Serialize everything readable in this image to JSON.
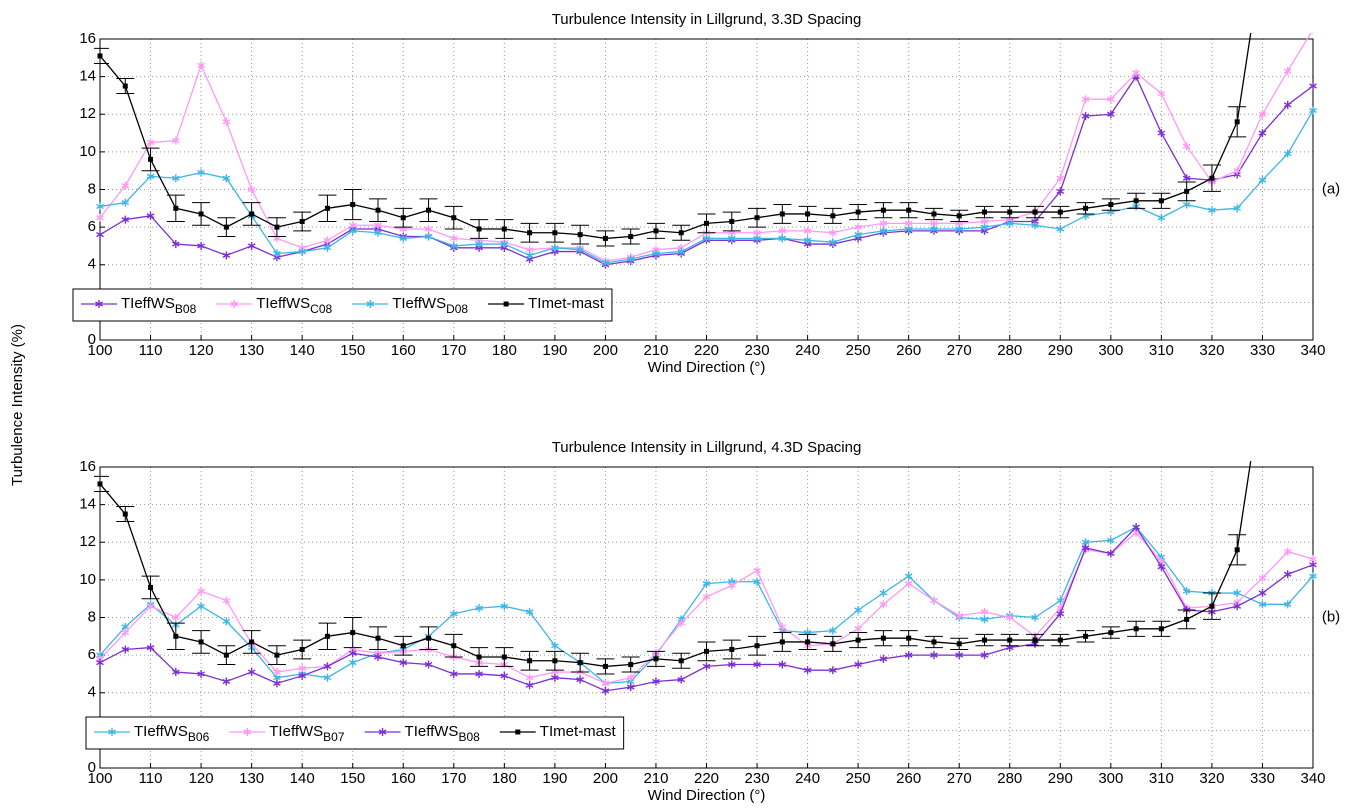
{
  "chart_data": [
    {
      "type": "line",
      "title": "Turbulence Intensity in Lillgrund, 3.3D Spacing",
      "xlabel": "Wind Direction (°)",
      "ylabel": "Turbulence Intensity (%)",
      "annotation": "(a)",
      "x": [
        100,
        105,
        110,
        115,
        120,
        125,
        130,
        135,
        140,
        145,
        150,
        155,
        160,
        165,
        170,
        175,
        180,
        185,
        190,
        195,
        200,
        205,
        210,
        215,
        220,
        225,
        230,
        235,
        240,
        245,
        250,
        255,
        260,
        265,
        270,
        275,
        280,
        285,
        290,
        295,
        300,
        305,
        310,
        315,
        320,
        325,
        330,
        335,
        340
      ],
      "xlim": [
        100,
        340
      ],
      "xticks": [
        100,
        110,
        120,
        130,
        140,
        150,
        160,
        170,
        180,
        190,
        200,
        210,
        220,
        230,
        240,
        250,
        260,
        270,
        280,
        290,
        300,
        310,
        320,
        330,
        340
      ],
      "ylim": [
        0,
        16
      ],
      "yticks": [
        0,
        2,
        4,
        6,
        8,
        10,
        12,
        14,
        16
      ],
      "grid": true,
      "legend": "lower left",
      "series": [
        {
          "name": "TIeffWS",
          "subscript": "B08",
          "color": "#7b2fd4",
          "marker": "star",
          "values": [
            5.6,
            6.4,
            6.6,
            5.1,
            5.0,
            4.5,
            5.0,
            4.4,
            4.7,
            5.1,
            5.9,
            5.9,
            5.5,
            5.5,
            4.9,
            4.9,
            4.9,
            4.3,
            4.7,
            4.7,
            4.0,
            4.2,
            4.5,
            4.6,
            5.3,
            5.3,
            5.3,
            5.4,
            5.1,
            5.1,
            5.4,
            5.7,
            5.8,
            5.8,
            5.8,
            5.8,
            6.3,
            6.3,
            7.9,
            11.9,
            12.0,
            14.0,
            11.0,
            8.6,
            8.5,
            8.8,
            11.0,
            12.5,
            13.5
          ]
        },
        {
          "name": "TIeffWS",
          "subscript": "C08",
          "color": "#ff99f5",
          "marker": "star",
          "values": [
            6.5,
            8.2,
            10.5,
            10.6,
            14.6,
            11.6,
            8.0,
            5.4,
            4.9,
            5.3,
            6.1,
            6.1,
            5.9,
            5.9,
            5.4,
            5.3,
            5.2,
            4.8,
            4.9,
            4.9,
            4.2,
            4.4,
            4.8,
            4.9,
            5.7,
            5.7,
            5.7,
            5.8,
            5.8,
            5.7,
            6.0,
            6.2,
            6.2,
            6.2,
            6.2,
            6.3,
            6.4,
            6.8,
            8.6,
            12.8,
            12.8,
            14.2,
            13.1,
            10.3,
            8.4,
            9.0,
            12.0,
            14.3,
            16.5
          ]
        },
        {
          "name": "TIeffWS",
          "subscript": "D08",
          "color": "#3fb6e6",
          "marker": "star",
          "values": [
            7.1,
            7.3,
            8.7,
            8.6,
            8.9,
            8.6,
            6.6,
            4.6,
            4.7,
            4.9,
            5.8,
            5.7,
            5.4,
            5.5,
            5.0,
            5.1,
            5.1,
            4.5,
            4.9,
            4.8,
            4.1,
            4.3,
            4.6,
            4.7,
            5.4,
            5.4,
            5.4,
            5.4,
            5.3,
            5.2,
            5.6,
            5.8,
            5.9,
            5.9,
            5.9,
            6.0,
            6.2,
            6.1,
            5.9,
            6.6,
            6.8,
            7.1,
            6.5,
            7.2,
            6.9,
            7.0,
            8.5,
            9.9,
            12.2
          ]
        },
        {
          "name": "TImet-mast",
          "color": "#000000",
          "marker": "square",
          "values": [
            15.1,
            13.5,
            9.6,
            7.0,
            6.7,
            6.0,
            6.7,
            6.0,
            6.3,
            7.0,
            7.2,
            6.9,
            6.5,
            6.9,
            6.5,
            5.9,
            5.9,
            5.7,
            5.7,
            5.6,
            5.4,
            5.5,
            5.8,
            5.7,
            6.2,
            6.3,
            6.5,
            6.7,
            6.7,
            6.6,
            6.8,
            6.9,
            6.9,
            6.7,
            6.6,
            6.8,
            6.8,
            6.8,
            6.8,
            7.0,
            7.2,
            7.4,
            7.4,
            7.9,
            8.6,
            11.6,
            20.4,
            null,
            null
          ],
          "errors": [
            0.4,
            0.4,
            0.6,
            0.7,
            0.6,
            0.5,
            0.6,
            0.5,
            0.5,
            0.7,
            0.8,
            0.6,
            0.5,
            0.6,
            0.6,
            0.5,
            0.5,
            0.5,
            0.5,
            0.5,
            0.4,
            0.4,
            0.4,
            0.4,
            0.5,
            0.5,
            0.5,
            0.5,
            0.4,
            0.4,
            0.4,
            0.4,
            0.4,
            0.3,
            0.3,
            0.3,
            0.3,
            0.3,
            0.3,
            0.3,
            0.3,
            0.4,
            0.4,
            0.5,
            0.7,
            0.8,
            null,
            null,
            null
          ]
        }
      ]
    },
    {
      "type": "line",
      "title": "Turbulence Intensity in Lillgrund, 4.3D Spacing",
      "xlabel": "Wind Direction (°)",
      "annotation": "(b)",
      "x": [
        100,
        105,
        110,
        115,
        120,
        125,
        130,
        135,
        140,
        145,
        150,
        155,
        160,
        165,
        170,
        175,
        180,
        185,
        190,
        195,
        200,
        205,
        210,
        215,
        220,
        225,
        230,
        235,
        240,
        245,
        250,
        255,
        260,
        265,
        270,
        275,
        280,
        285,
        290,
        295,
        300,
        305,
        310,
        315,
        320,
        325,
        330,
        335,
        340
      ],
      "xlim": [
        100,
        340
      ],
      "xticks": [
        100,
        110,
        120,
        130,
        140,
        150,
        160,
        170,
        180,
        190,
        200,
        210,
        220,
        230,
        240,
        250,
        260,
        270,
        280,
        290,
        300,
        310,
        320,
        330,
        340
      ],
      "ylim": [
        0,
        16
      ],
      "yticks": [
        0,
        2,
        4,
        6,
        8,
        10,
        12,
        14,
        16
      ],
      "grid": true,
      "legend": "lower left",
      "series": [
        {
          "name": "TIeffWS",
          "subscript": "B06",
          "color": "#3fb6e6",
          "marker": "star",
          "values": [
            6.0,
            7.5,
            8.7,
            7.6,
            8.6,
            7.8,
            6.4,
            4.8,
            5.0,
            4.8,
            5.6,
            6.1,
            6.3,
            7.0,
            8.2,
            8.5,
            8.6,
            8.3,
            6.5,
            5.6,
            4.5,
            4.6,
            6.0,
            7.9,
            9.8,
            9.9,
            9.9,
            7.3,
            7.2,
            7.3,
            8.4,
            9.3,
            10.2,
            8.9,
            8.0,
            7.9,
            8.1,
            8.0,
            8.9,
            12.0,
            12.1,
            12.8,
            11.2,
            9.4,
            9.3,
            9.3,
            8.7,
            8.7,
            10.2
          ]
        },
        {
          "name": "TIeffWS",
          "subscript": "B07",
          "color": "#ff99f5",
          "marker": "star",
          "values": [
            5.8,
            7.2,
            8.6,
            8.0,
            9.4,
            8.9,
            6.6,
            5.1,
            5.3,
            5.4,
            6.3,
            6.1,
            6.2,
            6.3,
            5.9,
            5.6,
            5.5,
            4.8,
            5.1,
            5.1,
            4.5,
            4.8,
            6.1,
            7.7,
            9.1,
            9.7,
            10.5,
            7.5,
            6.5,
            6.6,
            7.4,
            8.7,
            9.8,
            8.9,
            8.1,
            8.3,
            8.0,
            7.0,
            8.5,
            11.6,
            11.4,
            12.5,
            11.0,
            8.5,
            8.6,
            8.8,
            10.1,
            11.5,
            11.1
          ]
        },
        {
          "name": "TIeffWS",
          "subscript": "B08",
          "color": "#7b2fd4",
          "marker": "star",
          "values": [
            5.6,
            6.3,
            6.4,
            5.1,
            5.0,
            4.6,
            5.1,
            4.5,
            4.9,
            5.4,
            6.1,
            5.9,
            5.6,
            5.5,
            5.0,
            5.0,
            4.9,
            4.4,
            4.8,
            4.7,
            4.1,
            4.3,
            4.6,
            4.7,
            5.4,
            5.5,
            5.5,
            5.5,
            5.2,
            5.2,
            5.5,
            5.8,
            6.0,
            6.0,
            6.0,
            6.0,
            6.4,
            6.6,
            8.2,
            11.7,
            11.4,
            12.8,
            10.7,
            8.4,
            8.3,
            8.6,
            9.3,
            10.3,
            10.8
          ]
        },
        {
          "name": "TImet-mast",
          "color": "#000000",
          "marker": "square",
          "values": [
            15.1,
            13.5,
            9.6,
            7.0,
            6.7,
            6.0,
            6.7,
            6.0,
            6.3,
            7.0,
            7.2,
            6.9,
            6.5,
            6.9,
            6.5,
            5.9,
            5.9,
            5.7,
            5.7,
            5.6,
            5.4,
            5.5,
            5.8,
            5.7,
            6.2,
            6.3,
            6.5,
            6.7,
            6.7,
            6.6,
            6.8,
            6.9,
            6.9,
            6.7,
            6.6,
            6.8,
            6.8,
            6.8,
            6.8,
            7.0,
            7.2,
            7.4,
            7.4,
            7.9,
            8.6,
            11.6,
            20.4,
            null,
            null
          ],
          "errors": [
            0.4,
            0.4,
            0.6,
            0.7,
            0.6,
            0.5,
            0.6,
            0.5,
            0.5,
            0.7,
            0.8,
            0.6,
            0.5,
            0.6,
            0.6,
            0.5,
            0.5,
            0.5,
            0.5,
            0.5,
            0.4,
            0.4,
            0.4,
            0.4,
            0.5,
            0.5,
            0.5,
            0.5,
            0.4,
            0.4,
            0.4,
            0.4,
            0.4,
            0.3,
            0.3,
            0.3,
            0.3,
            0.3,
            0.3,
            0.3,
            0.3,
            0.4,
            0.4,
            0.5,
            0.7,
            0.8,
            null,
            null,
            null
          ]
        }
      ]
    }
  ]
}
